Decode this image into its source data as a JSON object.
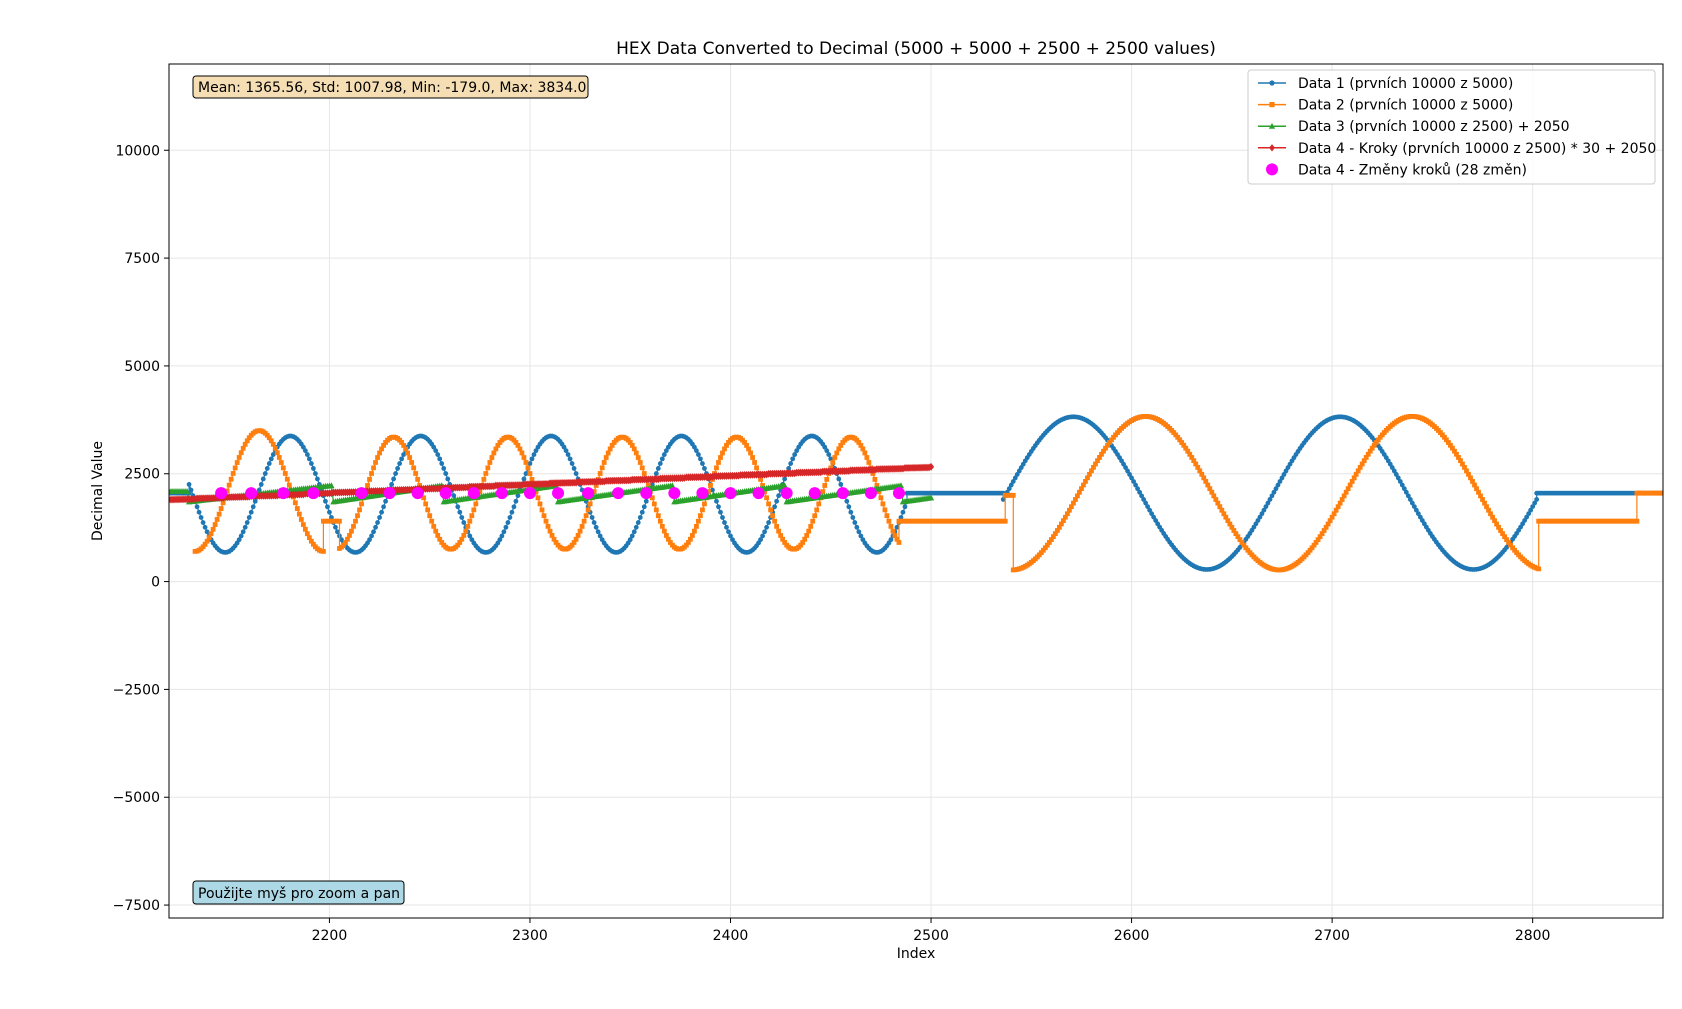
{
  "chart_data": {
    "type": "line",
    "title": "HEX Data Converted to Decimal (5000 + 5000 + 2500 + 2500 values)",
    "xlabel": "Index",
    "ylabel": "Decimal Value",
    "xlim": [
      2120,
      2865
    ],
    "ylim": [
      -7800,
      12000
    ],
    "xticks": [
      "2200",
      "2300",
      "2400",
      "2500",
      "2600",
      "2700",
      "2800"
    ],
    "yticks": [
      "−7500",
      "−5000",
      "−2500",
      "0",
      "2500",
      "5000",
      "7500",
      "10000"
    ],
    "grid": true,
    "legend_position": "top-right",
    "stats_text": "Mean: 1365.56, Std: 1007.98, Min: -179.0, Max: 3834.0",
    "hint_text": "Použijte myš pro zoom a pan",
    "colors": {
      "data1": "#1f77b4",
      "data2": "#ff7f0e",
      "data3": "#2ca02c",
      "data4": "#d62728",
      "changes": "#ff00ff",
      "stats_box": "#f5deb3",
      "hint_box": "#add8e6"
    },
    "series": [
      {
        "name": "Data 1 (prvních 10000 z 5000)",
        "marker": "circle",
        "segments": [
          {
            "kind": "flat",
            "from": 2120,
            "to": 2130,
            "value": 2050
          },
          {
            "kind": "sine",
            "from": 2130,
            "to": 2488,
            "center": 2025,
            "amplitude": 1350,
            "period": 65,
            "phase_x": 2148,
            "phase": "min"
          },
          {
            "kind": "flat",
            "from": 2488,
            "to": 2536,
            "value": 2050
          },
          {
            "kind": "sine",
            "from": 2536,
            "to": 2802,
            "center": 2050,
            "amplitude": 1770,
            "period": 133,
            "phase_x": 2571,
            "phase": "max"
          },
          {
            "kind": "flat",
            "from": 2802,
            "to": 2865,
            "value": 2050
          }
        ]
      },
      {
        "name": "Data 2 (prvních 10000 z 5000)",
        "marker": "square",
        "segments": [
          {
            "kind": "sine",
            "from": 2133,
            "to": 2197,
            "center": 2100,
            "amplitude": 1400,
            "period": 64,
            "phase_x": 2165,
            "phase": "max"
          },
          {
            "kind": "flat",
            "from": 2197,
            "to": 2205,
            "value": 1400
          },
          {
            "kind": "sine",
            "from": 2205,
            "to": 2484,
            "center": 2050,
            "amplitude": 1300,
            "period": 57,
            "phase_x": 2232,
            "phase": "max"
          },
          {
            "kind": "flat",
            "from": 2484,
            "to": 2537,
            "value": 1400
          },
          {
            "kind": "flat",
            "from": 2537,
            "to": 2541,
            "value": 2000
          },
          {
            "kind": "sine",
            "from": 2541,
            "to": 2803,
            "center": 2050,
            "amplitude": 1780,
            "period": 133,
            "phase_x": 2607,
            "phase": "max"
          },
          {
            "kind": "flat",
            "from": 2803,
            "to": 2852,
            "value": 1400
          },
          {
            "kind": "flat",
            "from": 2852,
            "to": 2865,
            "value": 2050
          }
        ]
      },
      {
        "name": "Data 3 (prvních 10000 z 2500) + 2050",
        "marker": "triangle",
        "sawtooth": {
          "from": 2120,
          "to": 2500,
          "starts": [
            2130,
            2202,
            2257,
            2314,
            2372,
            2428,
            2486
          ],
          "low": 1850,
          "high": 2230
        }
      },
      {
        "name": "Data 4 - Kroky (prvních 10000 z 2500) * 30 + 2050",
        "marker": "diamond",
        "ramp": {
          "from": 2120,
          "to": 2500,
          "start_value": 1900,
          "end_value": 2660
        }
      },
      {
        "name": "Data 4 - Změny kroků (28 změn)",
        "marker": "big-circle",
        "points_x": [
          2146,
          2161,
          2177,
          2192,
          2216,
          2230,
          2244,
          2258,
          2272,
          2286,
          2300,
          2314,
          2329,
          2344,
          2358,
          2372,
          2386,
          2400,
          2414,
          2428,
          2442,
          2456,
          2470,
          2484
        ],
        "value": 2050
      }
    ]
  }
}
